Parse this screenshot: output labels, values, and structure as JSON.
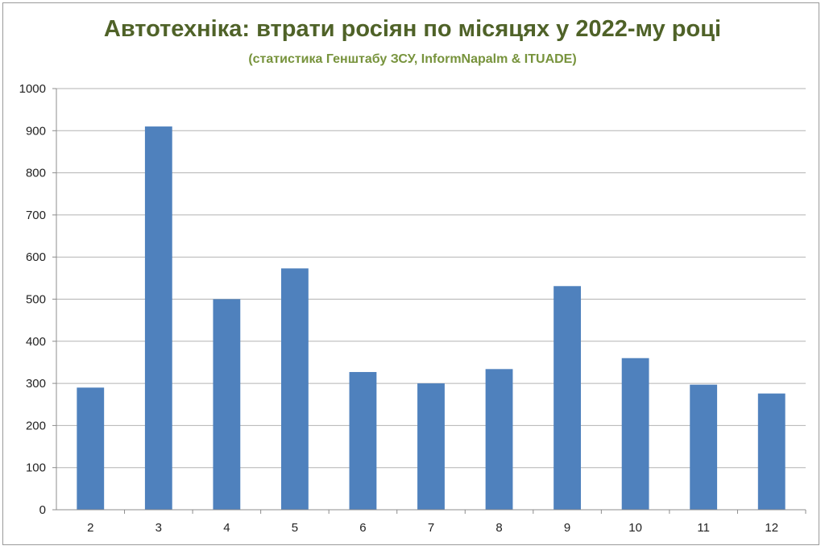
{
  "chart_data": {
    "type": "bar",
    "title": "Автотехніка: втрати росіян по місяцях у 2022-му році",
    "subtitle": "(статистика Генштабу ЗСУ, InformNapalm & ITUADE)",
    "xlabel": "",
    "ylabel": "",
    "categories": [
      "2",
      "3",
      "4",
      "5",
      "6",
      "7",
      "8",
      "9",
      "10",
      "11",
      "12"
    ],
    "values": [
      290,
      910,
      500,
      573,
      327,
      300,
      334,
      531,
      360,
      297,
      276
    ],
    "ylim": [
      0,
      1000
    ],
    "yticks": [
      "0",
      "100",
      "200",
      "300",
      "400",
      "500",
      "600",
      "700",
      "800",
      "900",
      "1000"
    ],
    "grid": true,
    "legend": "none",
    "bar_color": "#4f81bd",
    "grid_color": "#b3b3b3",
    "title_color": "#4f6228",
    "subtitle_color": "#77933c"
  }
}
